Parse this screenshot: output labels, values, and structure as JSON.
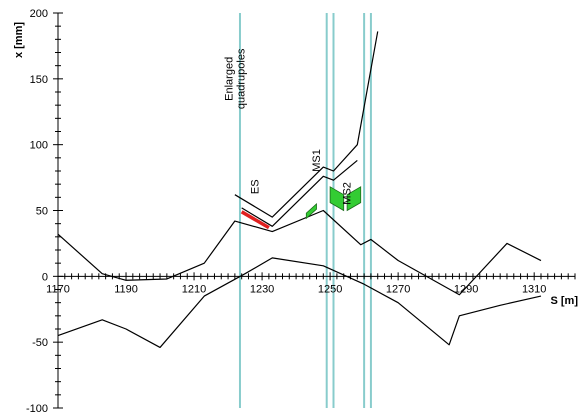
{
  "chart_data": {
    "type": "line",
    "xlabel": "S [m]",
    "ylabel": "x [mm]",
    "xlim": [
      1170,
      1322
    ],
    "ylim": [
      -100,
      200
    ],
    "grid": false,
    "x_tick_labels": [
      "1170",
      "1190",
      "1210",
      "1230",
      "1250",
      "1270",
      "1290",
      "1310"
    ],
    "y_tick_labels": [
      "-100",
      "-50",
      "0",
      "50",
      "100",
      "150",
      "200"
    ],
    "x_ticks": [
      1170,
      1190,
      1210,
      1230,
      1250,
      1270,
      1290,
      1310
    ],
    "y_ticks": [
      -100,
      -50,
      0,
      50,
      100,
      150,
      200
    ],
    "vertical_markers": [
      1223.5,
      1249,
      1251,
      1260,
      1262
    ],
    "annotations": [
      {
        "text": "Enlarged\nquadrupoles",
        "x": 1223,
        "y": 150
      },
      {
        "text": "ES",
        "x": 1229,
        "y": 68
      },
      {
        "text": "MS1",
        "x": 1247,
        "y": 88
      },
      {
        "text": "MS2",
        "x": 1256,
        "y": 63
      }
    ],
    "series": [
      {
        "color": "#000000",
        "x": [
          1170,
          1183,
          1190,
          1202,
          1213,
          1222,
          1233,
          1248,
          1259,
          1262,
          1270,
          1288,
          1302,
          1312
        ],
        "y": [
          32,
          2,
          -3,
          -2,
          10,
          42,
          34,
          50,
          24,
          28,
          12,
          -14,
          25,
          12
        ]
      },
      {
        "color": "#000000",
        "x": [
          1170,
          1183,
          1190,
          1200,
          1213,
          1225,
          1233,
          1248,
          1260,
          1270,
          1285,
          1288,
          1300,
          1312
        ],
        "y": [
          -45,
          -33,
          -40,
          -54,
          -15,
          2,
          14,
          8,
          -6,
          -20,
          -52,
          -30,
          -22,
          -15
        ]
      },
      {
        "color": "#000000",
        "x": [
          1222,
          1233,
          1248,
          1251,
          1258,
          1264
        ],
        "y": [
          62,
          45,
          83,
          80,
          100,
          186
        ]
      },
      {
        "color": "#000000",
        "x": [
          1224,
          1233,
          1248,
          1251,
          1258
        ],
        "y": [
          52,
          38,
          76,
          73,
          88
        ]
      },
      {
        "color": "#e02020",
        "x": [
          1224,
          1232
        ],
        "y": [
          49,
          37
        ]
      }
    ],
    "elements": [
      {
        "color": "#33cc33",
        "points": [
          [
            1243,
            48
          ],
          [
            1246,
            55
          ],
          [
            1246,
            51
          ],
          [
            1243,
            44
          ]
        ]
      },
      {
        "color": "#33cc33",
        "points": [
          [
            1250,
            68
          ],
          [
            1254,
            62
          ],
          [
            1254,
            50
          ],
          [
            1250,
            56
          ]
        ]
      },
      {
        "color": "#33cc33",
        "points": [
          [
            1255,
            62
          ],
          [
            1259,
            68
          ],
          [
            1259,
            56
          ],
          [
            1255,
            50
          ]
        ]
      }
    ],
    "colors": {
      "marker_line": "#88cccc",
      "axis": "#000000"
    }
  }
}
